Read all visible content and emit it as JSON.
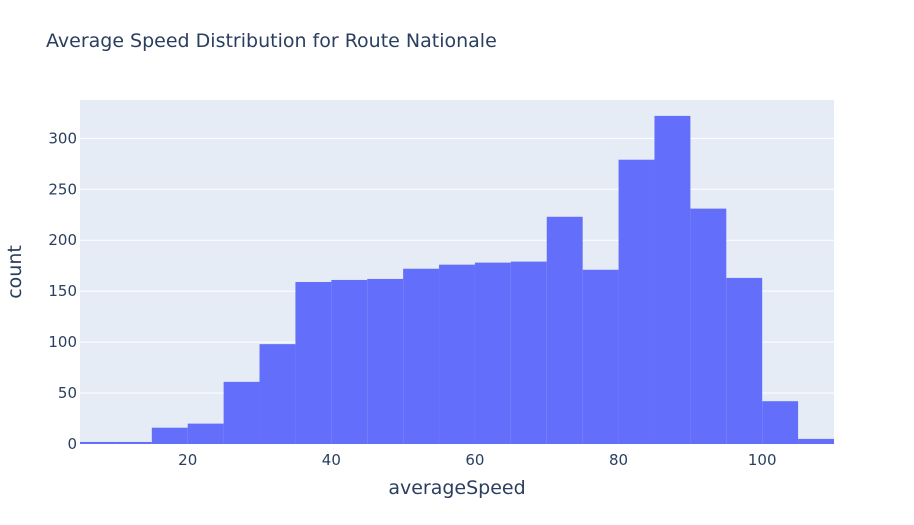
{
  "chart_data": {
    "type": "bar",
    "subtype": "histogram",
    "title": "Average Speed Distribution for Route Nationale",
    "xlabel": "averageSpeed",
    "ylabel": "count",
    "bin_edges": [
      5,
      10,
      15,
      20,
      25,
      30,
      35,
      40,
      45,
      50,
      55,
      60,
      65,
      70,
      75,
      80,
      85,
      90,
      95,
      100,
      105,
      110
    ],
    "categories": [
      "5-10",
      "10-15",
      "15-20",
      "20-25",
      "25-30",
      "30-35",
      "35-40",
      "40-45",
      "45-50",
      "50-55",
      "55-60",
      "60-65",
      "65-70",
      "70-75",
      "75-80",
      "80-85",
      "85-90",
      "90-95",
      "95-100",
      "100-105",
      "105-110"
    ],
    "values": [
      2,
      2,
      16,
      20,
      61,
      98,
      159,
      161,
      162,
      172,
      176,
      178,
      179,
      223,
      171,
      279,
      322,
      231,
      163,
      42,
      5
    ],
    "xlim": [
      5,
      110
    ],
    "ylim": [
      0,
      337.6
    ],
    "xticks": [
      20,
      40,
      60,
      80,
      100
    ],
    "yticks": [
      0,
      50,
      100,
      150,
      200,
      250,
      300
    ],
    "grid": true,
    "legend": null,
    "colors": {
      "bar": "#636efa",
      "plot_bg": "#e5ecf6",
      "grid": "#ffffff",
      "text": "#2a3f5f"
    }
  }
}
